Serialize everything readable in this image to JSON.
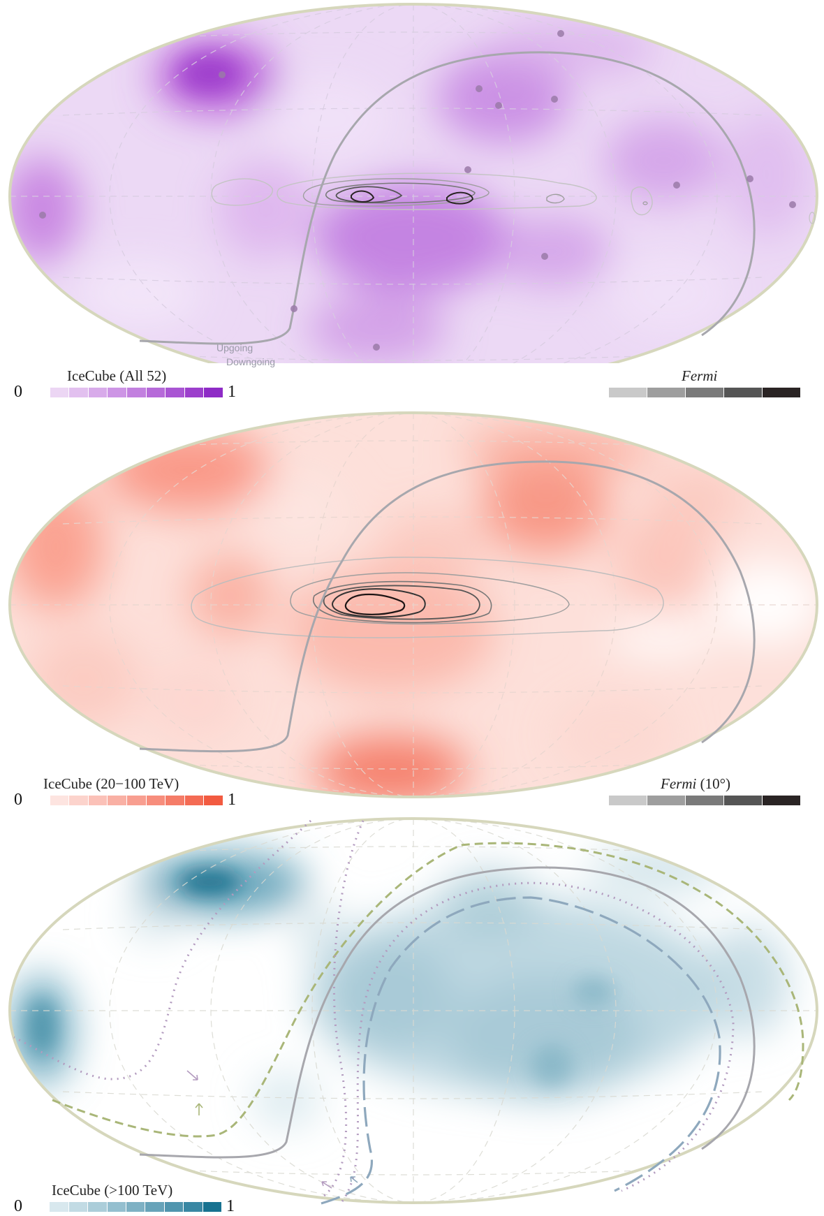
{
  "panels": [
    {
      "colorbar": {
        "title": "IceCube (All 52)",
        "min": "0",
        "max": "1",
        "colors": [
          "#ffffff",
          "#ecd6f4",
          "#e2c0ef",
          "#d8abea",
          "#cd95e5",
          "#c280df",
          "#b66ad9",
          "#a955d3",
          "#9c3fcc",
          "#8e2bc6"
        ]
      },
      "fermi": {
        "title": "Fermi",
        "suffix": "",
        "colors": [
          "#c9c9c9",
          "#9e9e9e",
          "#7a7a7a",
          "#555555",
          "#2a2424"
        ]
      },
      "labels": {
        "upgoing": "Upgoing",
        "downgoing": "Downgoing"
      },
      "base_color": "#ecd9f5"
    },
    {
      "colorbar": {
        "title": "IceCube (20−100 TeV)",
        "min": "0",
        "max": "1",
        "colors": [
          "#ffffff",
          "#fde4e0",
          "#fcd3cc",
          "#fbc1b8",
          "#f9b0a4",
          "#f89e90",
          "#f78d7c",
          "#f57c68",
          "#f46b54",
          "#f25a40"
        ]
      },
      "fermi": {
        "title": "Fermi",
        "suffix": " (10°)",
        "colors": [
          "#c9c9c9",
          "#9e9e9e",
          "#7a7a7a",
          "#555555",
          "#2a2424"
        ]
      },
      "base_color": "#fde0da"
    },
    {
      "colorbar": {
        "title": "IceCube (>100 TeV)",
        "min": "0",
        "max": "1",
        "colors": [
          "#ffffff",
          "#d8e8ee",
          "#c2dbe4",
          "#abcdd9",
          "#94bfcf",
          "#7eb1c4",
          "#67a3b9",
          "#5095ae",
          "#3987a3",
          "#177290"
        ]
      },
      "base_color": "#ffffff"
    }
  ]
}
